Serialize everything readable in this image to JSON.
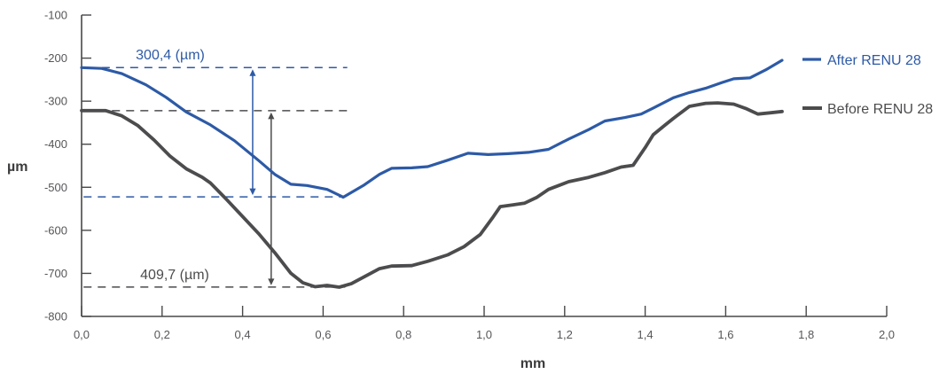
{
  "legend": {
    "after_label": "After RENU 28",
    "before_label": "Before RENU 28"
  },
  "chart_data": {
    "type": "line",
    "title": "",
    "xlabel": "mm",
    "ylabel": "µm",
    "xlim": [
      0.0,
      2.0
    ],
    "ylim": [
      -800,
      -100
    ],
    "grid": false,
    "legend_position": "right",
    "x_ticks": [
      {
        "v": 0.0,
        "label": "0,0"
      },
      {
        "v": 0.2,
        "label": "0,2"
      },
      {
        "v": 0.4,
        "label": "0,4"
      },
      {
        "v": 0.6,
        "label": "0,6"
      },
      {
        "v": 0.8,
        "label": "0,8"
      },
      {
        "v": 1.0,
        "label": "1,0"
      },
      {
        "v": 1.2,
        "label": "1,2"
      },
      {
        "v": 1.4,
        "label": "1,4"
      },
      {
        "v": 1.6,
        "label": "1,6"
      },
      {
        "v": 1.8,
        "label": "1,8"
      },
      {
        "v": 2.0,
        "label": "2,0"
      }
    ],
    "y_ticks": [
      {
        "v": -100,
        "label": "-100"
      },
      {
        "v": -200,
        "label": "-200"
      },
      {
        "v": -300,
        "label": "-300"
      },
      {
        "v": -400,
        "label": "-400"
      },
      {
        "v": -500,
        "label": "-500"
      },
      {
        "v": -600,
        "label": "-600"
      },
      {
        "v": -700,
        "label": "-700"
      },
      {
        "v": -800,
        "label": "-800"
      }
    ],
    "series": [
      {
        "name": "After RENU 28",
        "color": "#2d5aa6",
        "stroke_width": 3.2,
        "points": [
          [
            0.0,
            -222
          ],
          [
            0.05,
            -224
          ],
          [
            0.1,
            -236
          ],
          [
            0.16,
            -262
          ],
          [
            0.21,
            -291
          ],
          [
            0.26,
            -325
          ],
          [
            0.32,
            -355
          ],
          [
            0.38,
            -392
          ],
          [
            0.44,
            -438
          ],
          [
            0.48,
            -470
          ],
          [
            0.52,
            -493
          ],
          [
            0.56,
            -496
          ],
          [
            0.61,
            -505
          ],
          [
            0.65,
            -523
          ],
          [
            0.7,
            -496
          ],
          [
            0.74,
            -470
          ],
          [
            0.77,
            -456
          ],
          [
            0.82,
            -455
          ],
          [
            0.86,
            -452
          ],
          [
            0.91,
            -437
          ],
          [
            0.96,
            -421
          ],
          [
            1.01,
            -424
          ],
          [
            1.06,
            -422
          ],
          [
            1.11,
            -419
          ],
          [
            1.16,
            -412
          ],
          [
            1.21,
            -388
          ],
          [
            1.26,
            -366
          ],
          [
            1.3,
            -346
          ],
          [
            1.35,
            -338
          ],
          [
            1.39,
            -330
          ],
          [
            1.42,
            -316
          ],
          [
            1.47,
            -292
          ],
          [
            1.51,
            -280
          ],
          [
            1.55,
            -270
          ],
          [
            1.59,
            -257
          ],
          [
            1.62,
            -248
          ],
          [
            1.66,
            -246
          ],
          [
            1.7,
            -227
          ],
          [
            1.74,
            -205
          ]
        ]
      },
      {
        "name": "Before RENU 28",
        "color": "#4c4c4e",
        "stroke_width": 3.8,
        "points": [
          [
            0.0,
            -322
          ],
          [
            0.06,
            -322
          ],
          [
            0.1,
            -334
          ],
          [
            0.14,
            -357
          ],
          [
            0.18,
            -390
          ],
          [
            0.22,
            -428
          ],
          [
            0.26,
            -457
          ],
          [
            0.3,
            -477
          ],
          [
            0.32,
            -490
          ],
          [
            0.36,
            -528
          ],
          [
            0.4,
            -568
          ],
          [
            0.44,
            -608
          ],
          [
            0.48,
            -652
          ],
          [
            0.52,
            -700
          ],
          [
            0.55,
            -722
          ],
          [
            0.58,
            -731
          ],
          [
            0.61,
            -728
          ],
          [
            0.64,
            -732
          ],
          [
            0.67,
            -724
          ],
          [
            0.7,
            -709
          ],
          [
            0.74,
            -689
          ],
          [
            0.77,
            -683
          ],
          [
            0.82,
            -682
          ],
          [
            0.86,
            -672
          ],
          [
            0.91,
            -657
          ],
          [
            0.95,
            -638
          ],
          [
            0.99,
            -610
          ],
          [
            1.02,
            -572
          ],
          [
            1.04,
            -545
          ],
          [
            1.07,
            -541
          ],
          [
            1.1,
            -537
          ],
          [
            1.13,
            -524
          ],
          [
            1.16,
            -505
          ],
          [
            1.21,
            -487
          ],
          [
            1.26,
            -477
          ],
          [
            1.3,
            -466
          ],
          [
            1.34,
            -453
          ],
          [
            1.37,
            -449
          ],
          [
            1.4,
            -408
          ],
          [
            1.42,
            -378
          ],
          [
            1.45,
            -355
          ],
          [
            1.47,
            -340
          ],
          [
            1.51,
            -312
          ],
          [
            1.55,
            -305
          ],
          [
            1.58,
            -304
          ],
          [
            1.62,
            -307
          ],
          [
            1.65,
            -317
          ],
          [
            1.68,
            -330
          ],
          [
            1.71,
            -327
          ],
          [
            1.74,
            -324
          ]
        ]
      }
    ],
    "annotations": {
      "after_depth_label": "300,4 (µm)",
      "before_depth_label": "409,7 (µm)"
    },
    "reference_lines": [
      {
        "id": "after-start-level",
        "color": "#2d5aa6",
        "y": -222.0,
        "x1": 0.015,
        "x2": 0.66
      },
      {
        "id": "before-start-level",
        "color": "#4c4c4e",
        "y": -322.0,
        "x1": 0.005,
        "x2": 0.662
      },
      {
        "id": "after-min-level",
        "color": "#2d5aa6",
        "y": -522.4,
        "x1": 0.005,
        "x2": 0.645
      },
      {
        "id": "before-min-level",
        "color": "#4c4c4e",
        "y": -731.7,
        "x1": 0.005,
        "x2": 0.655
      }
    ],
    "arrows": [
      {
        "id": "after-depth-arrow",
        "color": "#2d5aa6",
        "x": 0.425,
        "y1": -222.0,
        "y2": -522.4
      },
      {
        "id": "before-depth-arrow",
        "color": "#4c4c4e",
        "x": 0.471,
        "y1": -322.0,
        "y2": -731.7
      }
    ]
  }
}
